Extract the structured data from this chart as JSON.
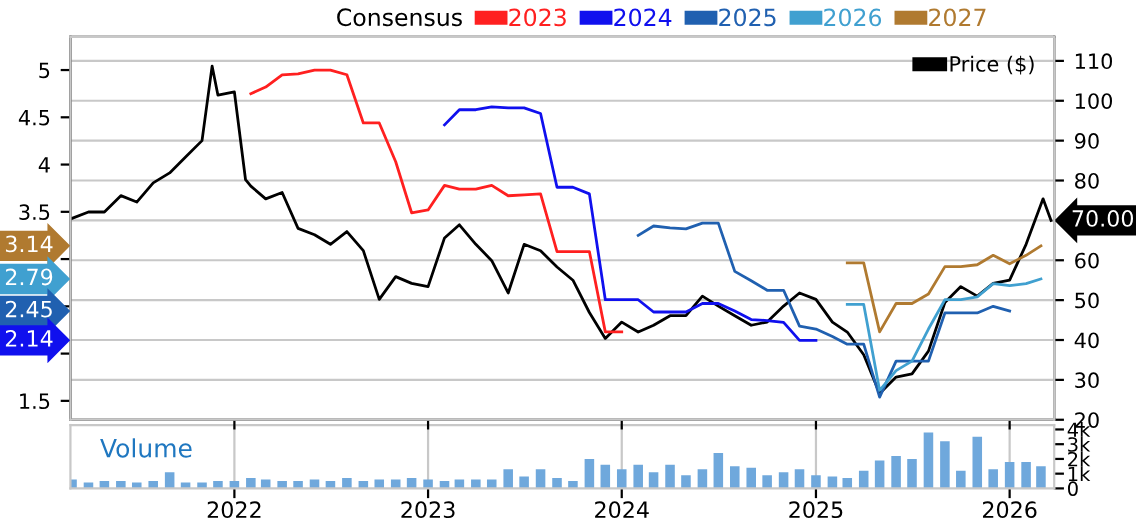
{
  "chart_data": [
    {
      "type": "line",
      "legend_title": "Consensus",
      "legend": "top",
      "grid": true,
      "tick_labels": "y",
      "xlim": [
        "2021-02-26",
        "2026-03-26"
      ],
      "xticks": [
        {
          "value": "2022",
          "label": null
        },
        {
          "value": "2023",
          "label": null
        },
        {
          "value": "2024",
          "label": null
        },
        {
          "value": "2025",
          "label": null
        },
        {
          "value": "2026",
          "label": null
        }
      ],
      "ylim": [
        1.3,
        5.35
      ],
      "yticks": [
        1.5,
        {
          "value": 2,
          "label": null
        },
        {
          "value": 2.5,
          "label": null
        },
        {
          "value": 3,
          "label": null
        },
        3.5,
        4,
        4.5,
        5
      ],
      "y2lim": [
        20,
        116
      ],
      "y2ticks": [
        20,
        30,
        40,
        50,
        60,
        {
          "value": 70,
          "label": null
        },
        80,
        90,
        100,
        110
      ],
      "annotations": [
        "3.14",
        "2.79",
        "2.45",
        "2.14",
        "70.00"
      ],
      "series": [
        {
          "name": "2023",
          "color": "#ff2020",
          "x": [
            "2022-02",
            "2022-03",
            "2022-04",
            "2022-05",
            "2022-06",
            "2022-07",
            "2022-08",
            "2022-09",
            "2022-10",
            "2022-11",
            "2022-12",
            "2023-01",
            "2023-02",
            "2023-03",
            "2023-04",
            "2023-05",
            "2023-06",
            "2023-07",
            "2023-08",
            "2023-09",
            "2023-10",
            "2023-11",
            "2023-12",
            "2024-01"
          ],
          "values": [
            4.75,
            4.82,
            4.95,
            4.96,
            5.0,
            5.0,
            4.95,
            4.44,
            4.44,
            4.03,
            3.49,
            3.52,
            3.78,
            3.74,
            3.74,
            3.78,
            3.67,
            3.68,
            3.69,
            3.08,
            3.08,
            3.08,
            2.23,
            2.23
          ]
        },
        {
          "name": "2024",
          "color": "#1010ee",
          "x": [
            "2023-02",
            "2023-03",
            "2023-04",
            "2023-05",
            "2023-06",
            "2023-07",
            "2023-08",
            "2023-09",
            "2023-10",
            "2023-11",
            "2023-12",
            "2024-01",
            "2024-02",
            "2024-03",
            "2024-04",
            "2024-05",
            "2024-06",
            "2024-07",
            "2024-08",
            "2024-09",
            "2024-10",
            "2024-11",
            "2024-12",
            "2025-01"
          ],
          "values": [
            4.42,
            4.58,
            4.58,
            4.61,
            4.6,
            4.6,
            4.54,
            3.76,
            3.76,
            3.69,
            2.57,
            2.57,
            2.57,
            2.44,
            2.44,
            2.44,
            2.53,
            2.53,
            2.45,
            2.36,
            2.35,
            2.33,
            2.14,
            2.14
          ]
        },
        {
          "name": "2025",
          "color": "#2060b0",
          "x": [
            "2024-02",
            "2024-03",
            "2024-04",
            "2024-05",
            "2024-06",
            "2024-07",
            "2024-08",
            "2024-09",
            "2024-10",
            "2024-11",
            "2024-12",
            "2025-01",
            "2025-02",
            "2025-03",
            "2025-04",
            "2025-05",
            "2025-06",
            "2025-07",
            "2025-08",
            "2025-09",
            "2025-10",
            "2025-11",
            "2025-12",
            "2026-01"
          ],
          "values": [
            3.25,
            3.35,
            3.33,
            3.32,
            3.38,
            3.38,
            2.87,
            2.77,
            2.67,
            2.67,
            2.29,
            2.26,
            2.18,
            2.1,
            2.1,
            1.54,
            1.92,
            1.92,
            1.92,
            2.43,
            2.43,
            2.43,
            2.5,
            2.45
          ]
        },
        {
          "name": "2026",
          "color": "#40a0d0",
          "x": [
            "2025-03",
            "2025-04",
            "2025-05",
            "2025-06",
            "2025-07",
            "2025-08",
            "2025-09",
            "2025-10",
            "2025-11",
            "2025-12",
            "2026-01",
            "2026-02",
            "2026-03"
          ],
          "values": [
            2.52,
            2.52,
            1.61,
            1.82,
            1.92,
            2.26,
            2.57,
            2.57,
            2.6,
            2.74,
            2.72,
            2.74,
            2.79
          ]
        },
        {
          "name": "2027",
          "color": "#b07a30",
          "x": [
            "2025-03",
            "2025-04",
            "2025-05",
            "2025-06",
            "2025-07",
            "2025-08",
            "2025-09",
            "2025-10",
            "2025-11",
            "2025-12",
            "2026-01",
            "2026-02",
            "2026-03"
          ],
          "values": [
            2.96,
            2.96,
            2.23,
            2.53,
            2.53,
            2.63,
            2.92,
            2.92,
            2.94,
            3.04,
            2.95,
            3.04,
            3.14
          ]
        },
        {
          "name": "Price ($)",
          "color": "#000000",
          "axis": "y2",
          "x": [
            "2021-03",
            "2021-04",
            "2021-05",
            "2021-06",
            "2021-07",
            "2021-08",
            "2021-09",
            "2021-10",
            "2021-11",
            "2021-11-20",
            "2021-12",
            "2022-01",
            "2022-01-22",
            "2022-02",
            "2022-03",
            "2022-04",
            "2022-05",
            "2022-06",
            "2022-07",
            "2022-08",
            "2022-09",
            "2022-10",
            "2022-11",
            "2022-12",
            "2023-01",
            "2023-02",
            "2023-03",
            "2023-04",
            "2023-05",
            "2023-06",
            "2023-07",
            "2023-08",
            "2023-09",
            "2023-10",
            "2023-11",
            "2023-12",
            "2024-01",
            "2024-02",
            "2024-03",
            "2024-04",
            "2024-05",
            "2024-06",
            "2024-07",
            "2024-08",
            "2024-09",
            "2024-10",
            "2024-11",
            "2024-12",
            "2025-01",
            "2025-02",
            "2025-03",
            "2025-04",
            "2025-05",
            "2025-06",
            "2025-07",
            "2025-08",
            "2025-09",
            "2025-10",
            "2025-11",
            "2025-12",
            "2026-01",
            "2026-02",
            "2026-03-05",
            "2026-03-20"
          ],
          "values": [
            70.5,
            72.1,
            72.1,
            76.2,
            74.6,
            79.4,
            81.9,
            85.9,
            90.0,
            108.7,
            101.4,
            102.2,
            80.2,
            78.6,
            75.4,
            77.0,
            68.0,
            66.4,
            64.0,
            67.2,
            62.4,
            50.2,
            55.9,
            54.2,
            53.4,
            65.6,
            68.9,
            64.0,
            59.9,
            51.8,
            64.0,
            62.4,
            58.3,
            55.0,
            46.9,
            40.4,
            44.5,
            42.0,
            43.7,
            46.1,
            46.1,
            51.0,
            48.5,
            46.1,
            43.7,
            44.5,
            48.5,
            51.8,
            50.2,
            44.5,
            42.0,
            36.3,
            26.6,
            30.7,
            31.5,
            37.2,
            49.4,
            53.4,
            51.0,
            54.2,
            55.0,
            64.0,
            75.4,
            70.0
          ]
        }
      ]
    },
    {
      "type": "bar",
      "color": "#6fa8dc",
      "grid": "x",
      "annotations": [
        "Volume"
      ],
      "xlim": [
        "2021-02-26",
        "2026-03-26"
      ],
      "xticks": [
        "2022",
        "2023",
        "2024",
        "2025",
        "2026"
      ],
      "ylim": [
        0,
        4300
      ],
      "yticks": [
        0,
        {
          "value": 1000,
          "label": "1k"
        },
        {
          "value": 2000,
          "label": "2k"
        },
        {
          "value": 3000,
          "label": "3k"
        },
        {
          "value": 4000,
          "label": "4k"
        }
      ],
      "x": [
        "2021-03",
        "2021-04",
        "2021-05",
        "2021-06",
        "2021-07",
        "2021-08",
        "2021-09",
        "2021-10",
        "2021-11",
        "2021-12",
        "2022-01",
        "2022-02",
        "2022-03",
        "2022-04",
        "2022-05",
        "2022-06",
        "2022-07",
        "2022-08",
        "2022-09",
        "2022-10",
        "2022-11",
        "2022-12",
        "2023-01",
        "2023-02",
        "2023-03",
        "2023-04",
        "2023-05",
        "2023-06",
        "2023-07",
        "2023-08",
        "2023-09",
        "2023-10",
        "2023-11",
        "2023-12",
        "2024-01",
        "2024-02",
        "2024-03",
        "2024-04",
        "2024-05",
        "2024-06",
        "2024-07",
        "2024-08",
        "2024-09",
        "2024-10",
        "2024-11",
        "2024-12",
        "2025-01",
        "2025-02",
        "2025-03",
        "2025-04",
        "2025-05",
        "2025-06",
        "2025-07",
        "2025-08",
        "2025-09",
        "2025-10",
        "2025-11",
        "2025-12",
        "2026-01",
        "2026-02",
        "2026-03"
      ],
      "values": [
        600,
        400,
        500,
        500,
        400,
        500,
        1100,
        400,
        400,
        500,
        500,
        700,
        600,
        500,
        500,
        600,
        500,
        700,
        500,
        600,
        600,
        700,
        600,
        500,
        600,
        600,
        600,
        1300,
        800,
        1300,
        700,
        500,
        2000,
        1600,
        1300,
        1600,
        1100,
        1600,
        900,
        1300,
        2400,
        1500,
        1400,
        900,
        1100,
        1300,
        900,
        800,
        700,
        1200,
        1900,
        2200,
        2000,
        3800,
        3200,
        1200,
        3500,
        1300,
        1800,
        1800,
        1500
      ]
    }
  ]
}
